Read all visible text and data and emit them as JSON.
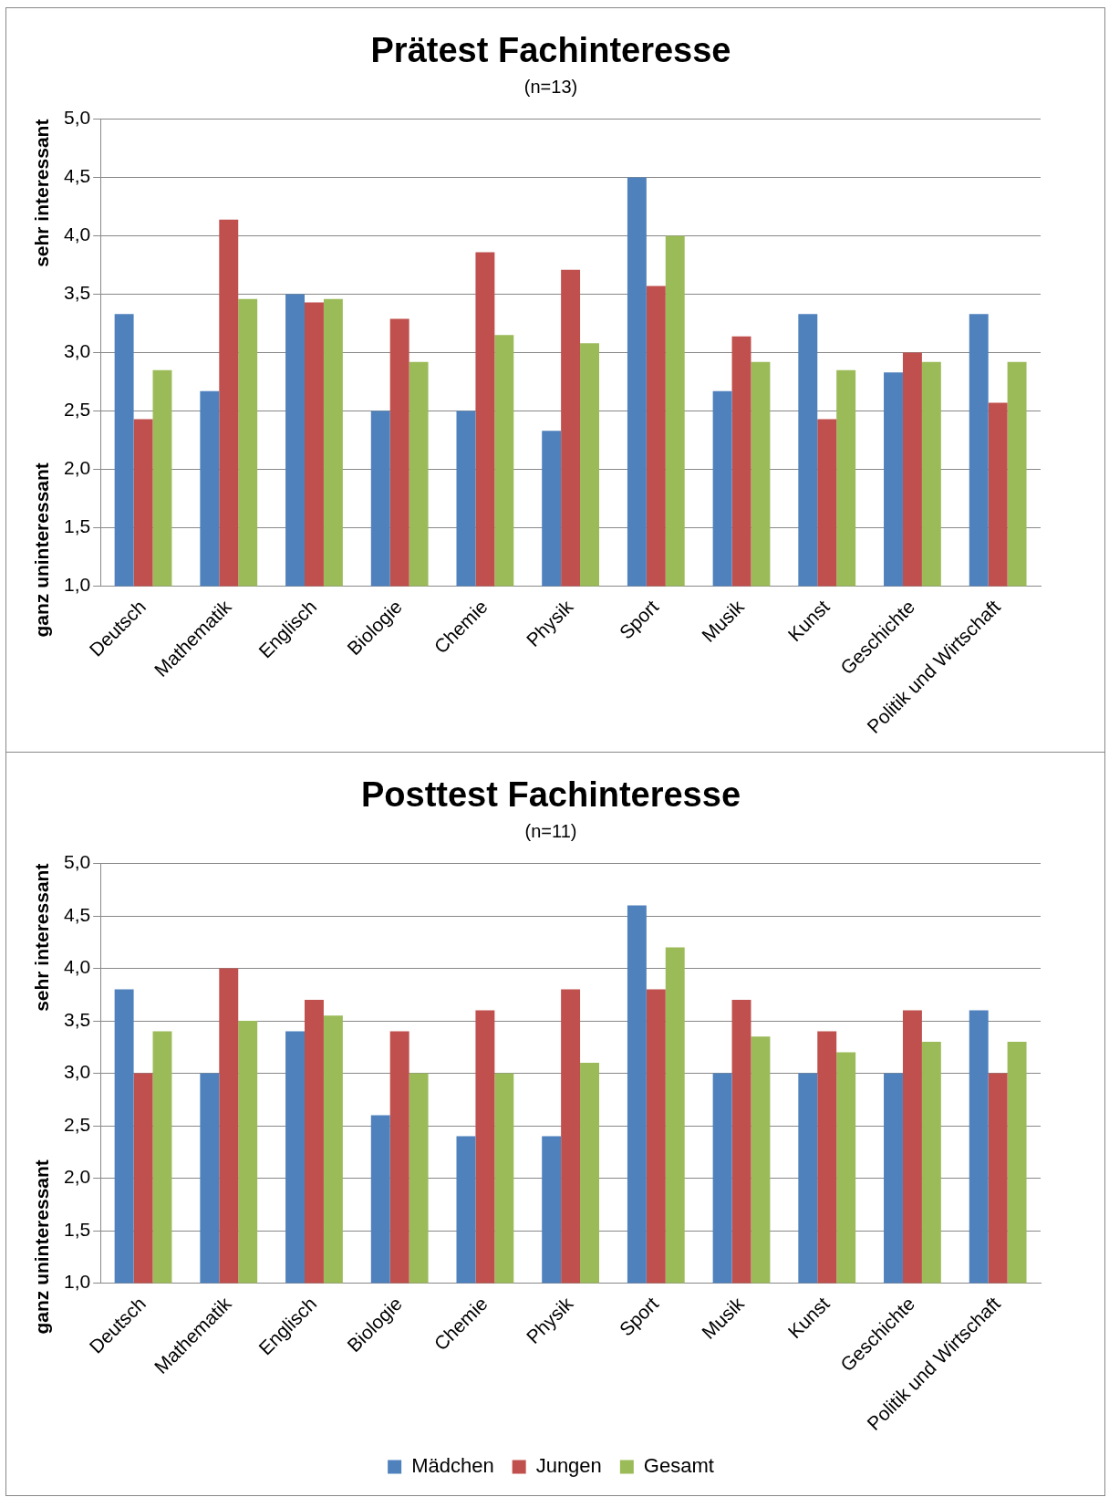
{
  "chart_data": [
    {
      "type": "bar",
      "title": "Prätest Fachinteresse",
      "subtitle": "(n=13)",
      "categories": [
        "Deutsch",
        "Mathematik",
        "Englisch",
        "Biologie",
        "Chemie",
        "Physik",
        "Sport",
        "Musik",
        "Kunst",
        "Geschichte",
        "Politik und Wirtschaft"
      ],
      "series": [
        {
          "color": "#4f81bd",
          "values": [
            3.33,
            2.67,
            3.5,
            2.5,
            2.5,
            2.33,
            4.5,
            2.67,
            3.33,
            2.83,
            3.33
          ]
        },
        {
          "color": "#c0504d",
          "values": [
            2.43,
            4.14,
            3.43,
            3.29,
            3.86,
            3.71,
            3.57,
            3.14,
            2.43,
            3.0,
            2.57
          ]
        },
        {
          "color": "#9bbb59",
          "values": [
            2.85,
            3.46,
            3.46,
            2.92,
            3.15,
            3.08,
            4.0,
            2.92,
            2.85,
            2.92,
            2.92
          ]
        }
      ],
      "ylim": [
        1,
        5
      ],
      "yticks": [
        {
          "value": 1,
          "label": "1,0"
        },
        {
          "value": 1.5,
          "label": "1,5"
        },
        {
          "value": 2,
          "label": "2,0"
        },
        {
          "value": 2.5,
          "label": "2,5"
        },
        {
          "value": 3,
          "label": "3,0"
        },
        {
          "value": 3.5,
          "label": "3,5"
        },
        {
          "value": 4,
          "label": "4,0"
        },
        {
          "value": 4.5,
          "label": "4,5"
        },
        {
          "value": 5,
          "label": "5,0"
        }
      ],
      "annotations": [
        "ganz uninteressant",
        "sehr interessant"
      ],
      "grid": "y",
      "legend": false
    },
    {
      "type": "bar",
      "title": "Posttest Fachinteresse",
      "subtitle": "(n=11)",
      "categories": [
        "Deutsch",
        "Mathematik",
        "Englisch",
        "Biologie",
        "Chemie",
        "Physik",
        "Sport",
        "Musik",
        "Kunst",
        "Geschichte",
        "Politik und Wirtschaft"
      ],
      "series": [
        {
          "name": "Mädchen",
          "color": "#4f81bd",
          "values": [
            3.8,
            3.0,
            3.4,
            2.6,
            2.4,
            2.4,
            4.6,
            3.0,
            3.0,
            3.0,
            3.6
          ]
        },
        {
          "name": "Jungen",
          "color": "#c0504d",
          "values": [
            3.0,
            4.0,
            3.7,
            3.4,
            3.6,
            3.8,
            3.8,
            3.7,
            3.4,
            3.6,
            3.0
          ]
        },
        {
          "name": "Gesamt",
          "color": "#9bbb59",
          "values": [
            3.4,
            3.5,
            3.55,
            3.0,
            3.0,
            3.1,
            4.2,
            3.35,
            3.2,
            3.3,
            3.3
          ]
        }
      ],
      "ylim": [
        1,
        5
      ],
      "yticks": [
        {
          "value": 1,
          "label": "1,0"
        },
        {
          "value": 1.5,
          "label": "1,5"
        },
        {
          "value": 2,
          "label": "2,0"
        },
        {
          "value": 2.5,
          "label": "2,5"
        },
        {
          "value": 3,
          "label": "3,0"
        },
        {
          "value": 3.5,
          "label": "3,5"
        },
        {
          "value": 4,
          "label": "4,0"
        },
        {
          "value": 4.5,
          "label": "4,5"
        },
        {
          "value": 5,
          "label": "5,0"
        }
      ],
      "annotations": [
        "ganz uninteressant",
        "sehr interessant"
      ],
      "grid": "y",
      "legend": "bottom"
    }
  ]
}
